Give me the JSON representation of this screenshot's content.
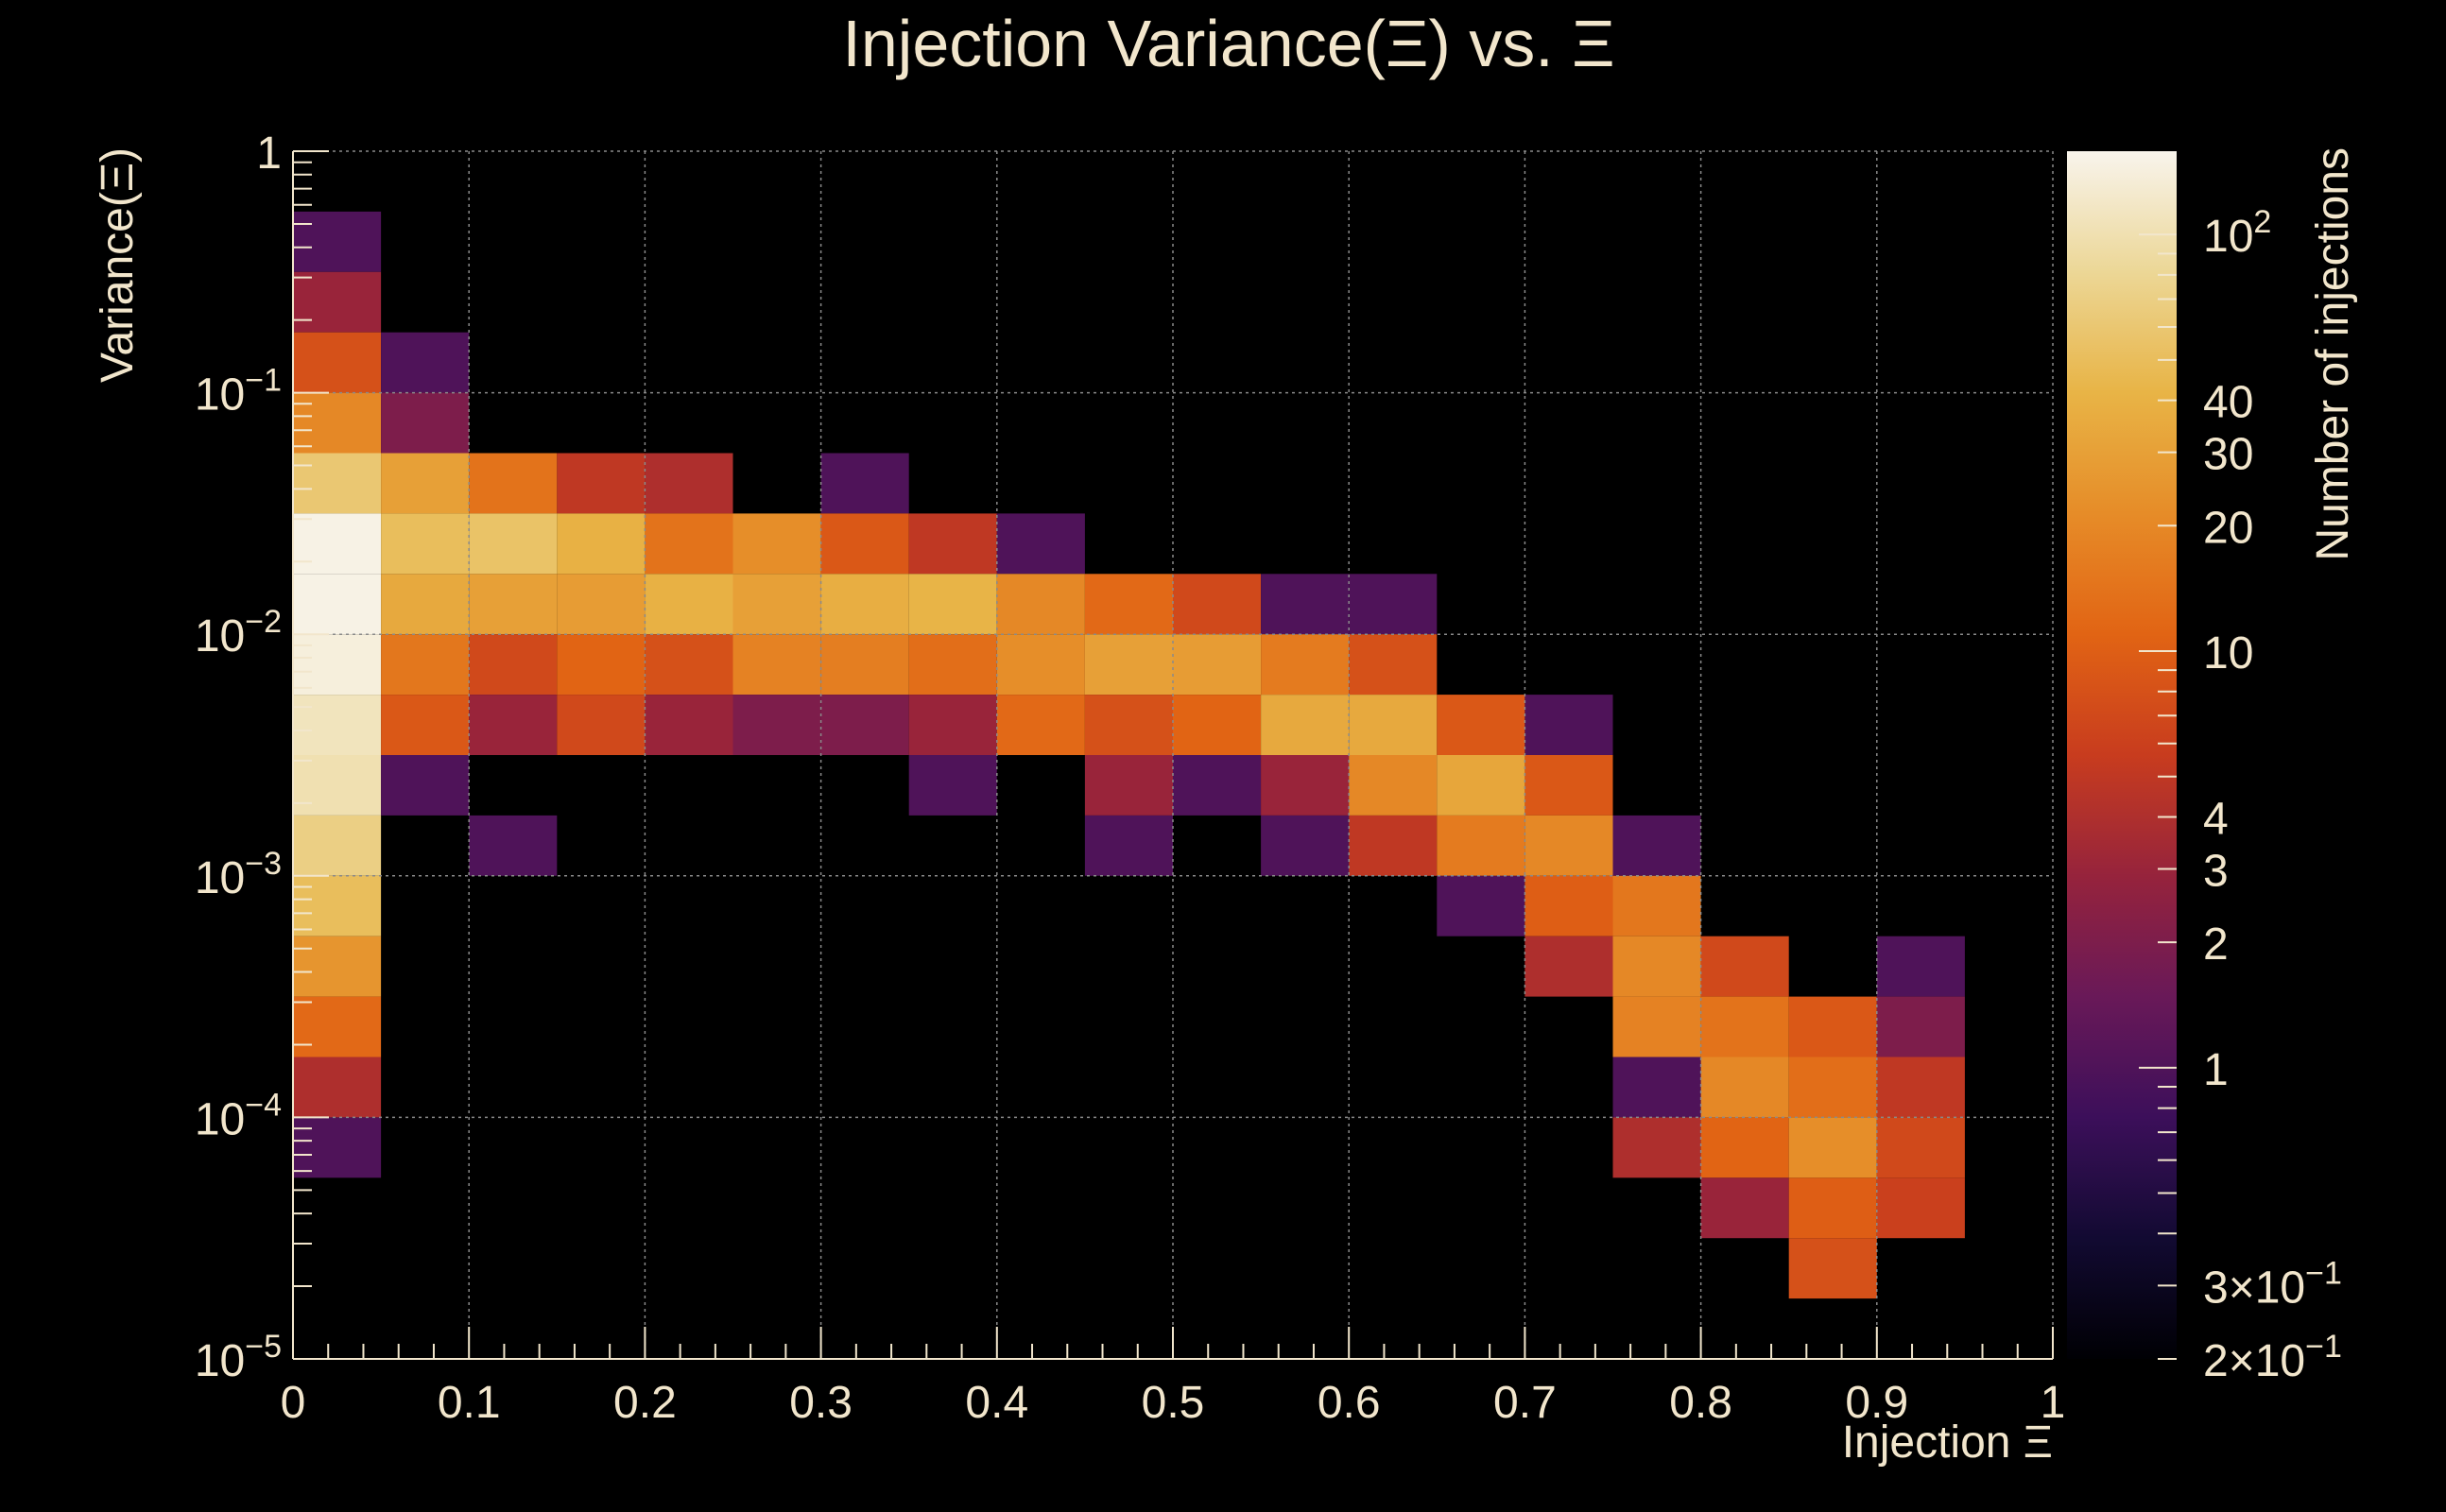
{
  "chart_data": {
    "type": "heatmap",
    "title": "Injection Variance(Ξ) vs. Ξ",
    "xlabel": "Injection Ξ",
    "ylabel": "Variance(Ξ)",
    "colorbar_label": "Number of injections",
    "x_range": [
      0,
      1
    ],
    "y_range_log10": [
      -5,
      0
    ],
    "x_bins": 20,
    "y_bins": 20,
    "x_ticks": [
      "0",
      "0.1",
      "0.2",
      "0.3",
      "0.4",
      "0.5",
      "0.6",
      "0.7",
      "0.8",
      "0.9",
      "1"
    ],
    "y_ticks": [
      {
        "log": 0,
        "mant": "1",
        "exp": ""
      },
      {
        "log": -1,
        "mant": "10",
        "exp": "−1"
      },
      {
        "log": -2,
        "mant": "10",
        "exp": "−2"
      },
      {
        "log": -3,
        "mant": "10",
        "exp": "−3"
      },
      {
        "log": -4,
        "mant": "10",
        "exp": "−4"
      },
      {
        "log": -5,
        "mant": "10",
        "exp": "−5"
      }
    ],
    "z_range_log10": [
      -0.699,
      2.2
    ],
    "colorbar_ticks": [
      {
        "value": 100,
        "mant": "10",
        "exp": "2"
      },
      {
        "value": 40,
        "mant": "40",
        "exp": ""
      },
      {
        "value": 30,
        "mant": "30",
        "exp": ""
      },
      {
        "value": 20,
        "mant": "20",
        "exp": ""
      },
      {
        "value": 10,
        "mant": "10",
        "exp": ""
      },
      {
        "value": 4,
        "mant": "4",
        "exp": ""
      },
      {
        "value": 3,
        "mant": "3",
        "exp": ""
      },
      {
        "value": 2,
        "mant": "2",
        "exp": ""
      },
      {
        "value": 1,
        "mant": "1",
        "exp": ""
      },
      {
        "value": 0.3,
        "mant": "3×10",
        "exp": "−1"
      },
      {
        "value": 0.2,
        "mant": "2×10",
        "exp": "−1"
      }
    ],
    "cells_note": "each cell: [x bin index 0-19, y bin index 0-19 counted from y=1e-5 upward, count]",
    "cells": [
      [
        0,
        18,
        1
      ],
      [
        0,
        17,
        3
      ],
      [
        0,
        16,
        8
      ],
      [
        0,
        15,
        20
      ],
      [
        0,
        14,
        60
      ],
      [
        0,
        13,
        150
      ],
      [
        0,
        12,
        150
      ],
      [
        0,
        11,
        140
      ],
      [
        0,
        10,
        110
      ],
      [
        0,
        9,
        100
      ],
      [
        0,
        8,
        70
      ],
      [
        0,
        7,
        50
      ],
      [
        0,
        6,
        25
      ],
      [
        0,
        5,
        12
      ],
      [
        0,
        4,
        4
      ],
      [
        0,
        3,
        1
      ],
      [
        1,
        16,
        1
      ],
      [
        1,
        15,
        2
      ],
      [
        1,
        14,
        30
      ],
      [
        1,
        13,
        50
      ],
      [
        1,
        12,
        35
      ],
      [
        1,
        11,
        15
      ],
      [
        1,
        10,
        9
      ],
      [
        1,
        9,
        1
      ],
      [
        2,
        14,
        14
      ],
      [
        2,
        13,
        55
      ],
      [
        2,
        12,
        30
      ],
      [
        2,
        11,
        7
      ],
      [
        2,
        10,
        3
      ],
      [
        2,
        8,
        1
      ],
      [
        3,
        14,
        5
      ],
      [
        3,
        13,
        40
      ],
      [
        3,
        12,
        28
      ],
      [
        3,
        11,
        11
      ],
      [
        3,
        10,
        7
      ],
      [
        4,
        14,
        4
      ],
      [
        4,
        13,
        14
      ],
      [
        4,
        12,
        40
      ],
      [
        4,
        11,
        8
      ],
      [
        4,
        10,
        3
      ],
      [
        5,
        13,
        22
      ],
      [
        5,
        12,
        30
      ],
      [
        5,
        11,
        18
      ],
      [
        5,
        10,
        2
      ],
      [
        6,
        14,
        1
      ],
      [
        6,
        13,
        9
      ],
      [
        6,
        12,
        38
      ],
      [
        6,
        11,
        17
      ],
      [
        6,
        10,
        2
      ],
      [
        7,
        13,
        5
      ],
      [
        7,
        12,
        42
      ],
      [
        7,
        11,
        13
      ],
      [
        7,
        10,
        3
      ],
      [
        7,
        9,
        1
      ],
      [
        8,
        13,
        1
      ],
      [
        8,
        12,
        20
      ],
      [
        8,
        11,
        22
      ],
      [
        8,
        10,
        12
      ],
      [
        9,
        12,
        12
      ],
      [
        9,
        11,
        30
      ],
      [
        9,
        10,
        8
      ],
      [
        9,
        9,
        3
      ],
      [
        9,
        8,
        1
      ],
      [
        10,
        12,
        7
      ],
      [
        10,
        11,
        28
      ],
      [
        10,
        10,
        11
      ],
      [
        10,
        9,
        1
      ],
      [
        11,
        12,
        1
      ],
      [
        11,
        11,
        16
      ],
      [
        11,
        10,
        35
      ],
      [
        11,
        9,
        3
      ],
      [
        11,
        8,
        1
      ],
      [
        12,
        12,
        1
      ],
      [
        12,
        11,
        8
      ],
      [
        12,
        10,
        35
      ],
      [
        12,
        9,
        20
      ],
      [
        12,
        8,
        5
      ],
      [
        13,
        10,
        9
      ],
      [
        13,
        9,
        33
      ],
      [
        13,
        8,
        16
      ],
      [
        13,
        7,
        1
      ],
      [
        14,
        10,
        1
      ],
      [
        14,
        9,
        9
      ],
      [
        14,
        8,
        20
      ],
      [
        14,
        7,
        10
      ],
      [
        14,
        6,
        4
      ],
      [
        15,
        8,
        1
      ],
      [
        15,
        7,
        15
      ],
      [
        15,
        6,
        20
      ],
      [
        15,
        5,
        18
      ],
      [
        15,
        4,
        1
      ],
      [
        15,
        3,
        4
      ],
      [
        16,
        6,
        7
      ],
      [
        16,
        5,
        14
      ],
      [
        16,
        4,
        20
      ],
      [
        16,
        3,
        11
      ],
      [
        16,
        2,
        3
      ],
      [
        17,
        5,
        9
      ],
      [
        17,
        4,
        13
      ],
      [
        17,
        3,
        22
      ],
      [
        17,
        2,
        10
      ],
      [
        17,
        1,
        8
      ],
      [
        18,
        6,
        1
      ],
      [
        18,
        5,
        2
      ],
      [
        18,
        4,
        5
      ],
      [
        18,
        3,
        7
      ],
      [
        18,
        2,
        6
      ]
    ]
  }
}
